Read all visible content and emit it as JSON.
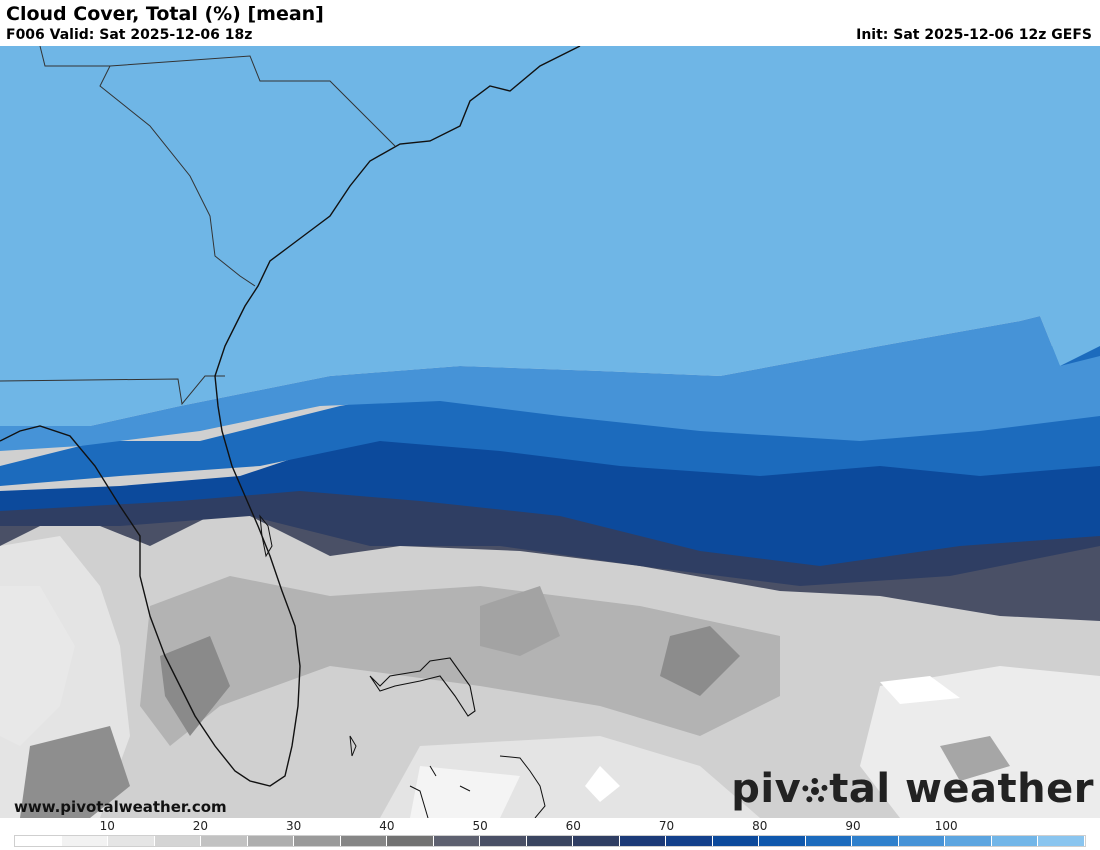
{
  "header": {
    "title": "Cloud Cover, Total (%) [mean]",
    "valid": "F006 Valid: Sat 2025-12-06 18z",
    "init": "Init: Sat 2025-12-06 12z GEFS"
  },
  "footer": {
    "site_url": "www.pivotalweather.com",
    "brand_left": "piv",
    "brand_right": "tal weather"
  },
  "colorbar": {
    "tick_labels": [
      "10",
      "20",
      "30",
      "40",
      "50",
      "60",
      "70",
      "80",
      "90",
      "100"
    ],
    "colors": [
      "#ffffff",
      "#f2f2f2",
      "#e5e5e5",
      "#d4d4d4",
      "#c2c2c2",
      "#aeaeae",
      "#9a9a9a",
      "#868686",
      "#727272",
      "#5e6170",
      "#4a5066",
      "#3a4560",
      "#2f3e63",
      "#1c3a78",
      "#13408b",
      "#0c4a9c",
      "#0f58ad",
      "#1c6bbd",
      "#2f80cc",
      "#4693d7",
      "#5ca5e0",
      "#72b6e8",
      "#8ac5ef"
    ]
  },
  "map_colors": {
    "clear": "#f3f3f3",
    "overcast": "#6fb6e6",
    "coast": "#111111",
    "border": "#333333"
  }
}
